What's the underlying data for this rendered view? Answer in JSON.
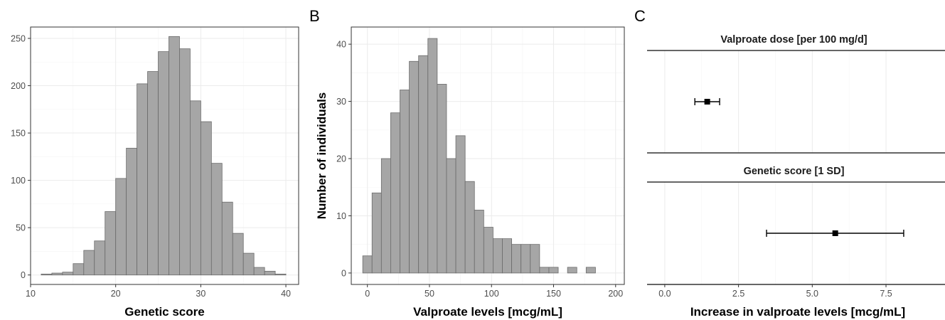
{
  "chart_data": [
    {
      "type": "bar",
      "panel_label": "",
      "xlabel": "Genetic score",
      "ylabel": "",
      "xlim": [
        10,
        41.5
      ],
      "ylim": [
        -10,
        262
      ],
      "x_ticks": [
        10,
        20,
        30,
        40
      ],
      "y_ticks": [
        0,
        50,
        100,
        150,
        200,
        250
      ],
      "bin_width": 1.25,
      "bin_start": 11.25,
      "values": [
        1,
        2,
        3,
        12,
        26,
        36,
        67,
        102,
        134,
        202,
        215,
        236,
        252,
        239,
        184,
        162,
        118,
        77,
        44,
        23,
        8,
        4,
        1
      ]
    },
    {
      "type": "bar",
      "panel_label": "B",
      "xlabel": "Valproate levels  [mcg/mL]",
      "ylabel": "Number of individuals",
      "xlim": [
        -13,
        207
      ],
      "ylim": [
        -2,
        43
      ],
      "x_ticks": [
        0,
        50,
        100,
        150,
        200
      ],
      "y_ticks": [
        0,
        10,
        20,
        30,
        40
      ],
      "bin_width": 7.5,
      "bin_start": -3.75,
      "values": [
        3,
        14,
        20,
        28,
        32,
        37,
        38,
        41,
        33,
        20,
        24,
        16,
        11,
        8,
        6,
        6,
        5,
        5,
        5,
        1,
        1,
        0,
        1,
        0,
        1
      ]
    },
    {
      "type": "forest",
      "panel_label": "C",
      "xlabel": "Increase in valproate levels [mcg/mL]",
      "xlim": [
        -0.6,
        9.5
      ],
      "x_ticks": [
        0.0,
        2.5,
        5.0,
        7.5
      ],
      "x_tick_labels": [
        "0.0",
        "2.5",
        "5.0",
        "7.5"
      ],
      "facets": [
        {
          "label": "Valproate dose [per 100 mg/d]",
          "estimate": 1.44,
          "ci_low": 1.02,
          "ci_high": 1.86
        },
        {
          "label": "Genetic score [1 SD]",
          "estimate": 5.78,
          "ci_low": 3.45,
          "ci_high": 8.1
        }
      ]
    }
  ]
}
